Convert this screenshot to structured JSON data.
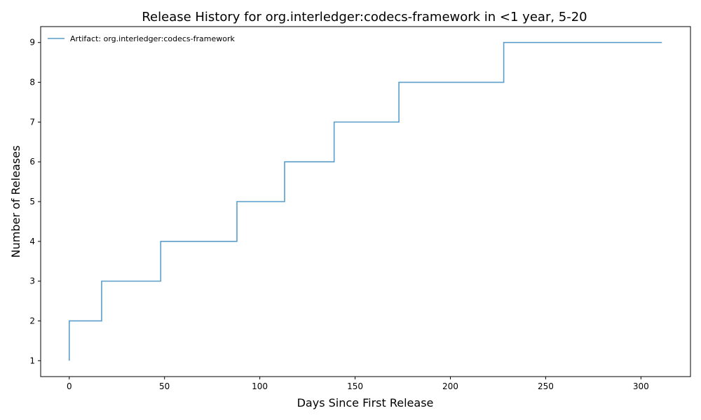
{
  "chart_data": {
    "type": "line",
    "step": true,
    "title": "Release History for org.interledger:codecs-framework in <1 year, 5-20",
    "xlabel": "Days Since First Release",
    "ylabel": "Number of Releases",
    "xlim": [
      -15,
      326
    ],
    "ylim": [
      0.6,
      9.4
    ],
    "xticks": [
      0,
      50,
      100,
      150,
      200,
      250,
      300
    ],
    "yticks": [
      1,
      2,
      3,
      4,
      5,
      6,
      7,
      8,
      9
    ],
    "grid": false,
    "legend_position": "top-left",
    "series": [
      {
        "name": "Artifact: org.interledger:codecs-framework",
        "color": "#5a9ec9",
        "x": [
          0,
          0,
          17,
          48,
          88,
          113,
          139,
          173,
          228,
          311
        ],
        "y": [
          1,
          2,
          3,
          4,
          5,
          6,
          7,
          8,
          9,
          9
        ]
      }
    ]
  }
}
